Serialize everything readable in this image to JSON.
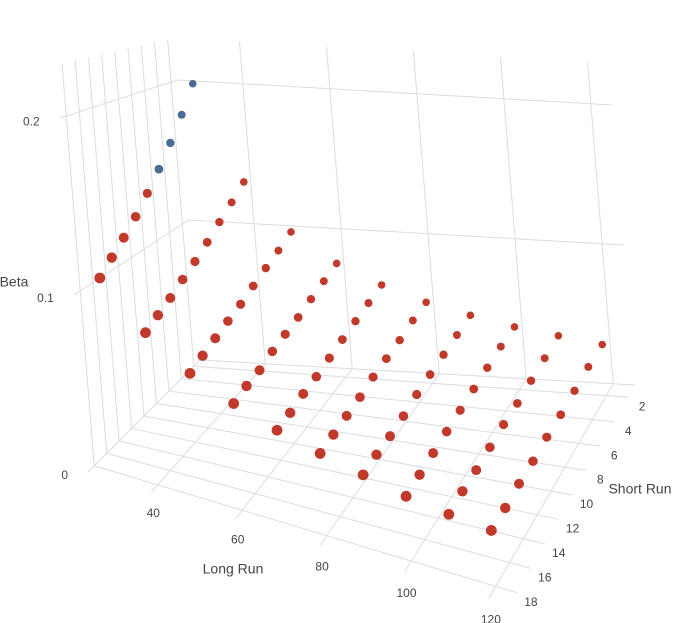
{
  "chart_data": {
    "type": "scatter3d",
    "xaxis_title": "Long Run",
    "yaxis_title": "Short Run",
    "zaxis_title": "Beta",
    "xlim": [
      25,
      125
    ],
    "ylim": [
      1,
      19
    ],
    "zlim": [
      0,
      0.23
    ],
    "xticks": [
      40,
      60,
      80,
      100,
      120
    ],
    "yticks": [
      2,
      4,
      6,
      8,
      10,
      12,
      14,
      16,
      18
    ],
    "zticks": [
      0,
      0.1,
      0.2
    ],
    "grid": true,
    "series": [
      {
        "color": "#4a6b94",
        "x": [
          30,
          30,
          30,
          30
        ],
        "y": [
          2,
          4,
          6,
          8
        ],
        "z": [
          0.2,
          0.182,
          0.167,
          0.154
        ]
      },
      {
        "color": "#c0392b",
        "x": [
          40,
          50,
          60,
          70,
          80,
          90,
          100,
          110,
          120,
          40,
          50,
          60,
          70,
          80,
          90,
          100,
          110,
          120,
          40,
          50,
          60,
          70,
          80,
          90,
          100,
          110,
          120,
          40,
          50,
          60,
          70,
          80,
          90,
          100,
          110,
          120,
          30,
          40,
          50,
          60,
          70,
          80,
          90,
          100,
          110,
          120,
          30,
          40,
          50,
          60,
          70,
          80,
          90,
          100,
          110,
          120,
          30,
          40,
          50,
          60,
          70,
          80,
          90,
          100,
          110,
          120,
          30,
          40,
          50,
          60,
          70,
          80,
          90,
          100,
          110,
          120,
          30,
          40,
          50,
          60,
          70,
          80,
          90,
          100,
          110,
          120
        ],
        "y": [
          2,
          2,
          2,
          2,
          2,
          2,
          2,
          2,
          2,
          4,
          4,
          4,
          4,
          4,
          4,
          4,
          4,
          4,
          6,
          6,
          6,
          6,
          6,
          6,
          6,
          6,
          6,
          8,
          8,
          8,
          8,
          8,
          8,
          8,
          8,
          8,
          10,
          10,
          10,
          10,
          10,
          10,
          10,
          10,
          10,
          10,
          12,
          12,
          12,
          12,
          12,
          12,
          12,
          12,
          12,
          12,
          14,
          14,
          14,
          14,
          14,
          14,
          14,
          14,
          14,
          14,
          16,
          16,
          16,
          16,
          16,
          16,
          16,
          16,
          16,
          16,
          18,
          18,
          18,
          18,
          18,
          18,
          18,
          18,
          18,
          18
        ],
        "z": [
          0.133,
          0.1,
          0.08,
          0.067,
          0.057,
          0.05,
          0.044,
          0.04,
          0.036,
          0.125,
          0.095,
          0.077,
          0.065,
          0.056,
          0.049,
          0.044,
          0.039,
          0.036,
          0.118,
          0.091,
          0.074,
          0.063,
          0.054,
          0.048,
          0.043,
          0.038,
          0.035,
          0.111,
          0.087,
          0.071,
          0.061,
          0.053,
          0.047,
          0.042,
          0.037,
          0.034,
          0.143,
          0.105,
          0.083,
          0.069,
          0.059,
          0.052,
          0.046,
          0.041,
          0.037,
          0.034,
          0.133,
          0.1,
          0.08,
          0.067,
          0.057,
          0.05,
          0.044,
          0.04,
          0.036,
          0.033,
          0.125,
          0.095,
          0.077,
          0.064,
          0.056,
          0.049,
          0.043,
          0.039,
          0.035,
          0.033,
          0.118,
          0.091,
          0.074,
          0.063,
          0.054,
          0.048,
          0.043,
          0.038,
          0.035,
          0.032,
          0.111,
          0.087,
          0.071,
          0.061,
          0.053,
          0.047,
          0.042,
          0.037,
          0.034,
          0.032
        ]
      }
    ]
  }
}
